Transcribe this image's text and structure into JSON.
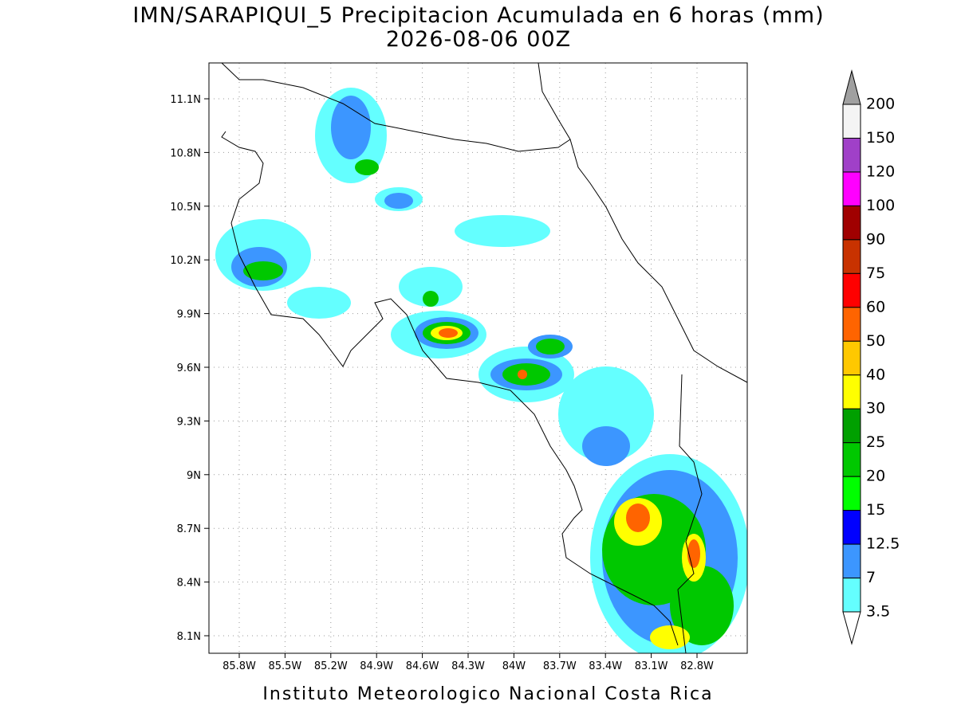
{
  "title": "IMN/SARAPIQUI_5 Precipitacion Acumulada en 6 horas (mm)",
  "subtitle": "2026-08-06 00Z",
  "footer": "Instituto Meteorologico Nacional Costa Rica",
  "map": {
    "lat_labels": [
      "11.1N",
      "10.8N",
      "10.5N",
      "10.2N",
      "9.9N",
      "9.6N",
      "9.3N",
      "9N",
      "8.7N",
      "8.4N",
      "8.1N"
    ],
    "lon_labels": [
      "85.8W",
      "85.5W",
      "85.2W",
      "84.9W",
      "84.6W",
      "84.3W",
      "84W",
      "83.7W",
      "83.4W",
      "83.1W",
      "82.8W"
    ]
  },
  "legend": {
    "labels": [
      200,
      150,
      120,
      100,
      90,
      75,
      60,
      50,
      40,
      30,
      25,
      20,
      15,
      12.5,
      7,
      3.5
    ],
    "colors": [
      "#f4f4f4",
      "#a040c8",
      "#ff00ff",
      "#a00000",
      "#c83200",
      "#ff0000",
      "#ff6400",
      "#ffc800",
      "#ffff00",
      "#00a000",
      "#00c800",
      "#00ff00",
      "#0000ff",
      "#3c96ff",
      "#64ffff"
    ],
    "over_color": "#a0a0a0",
    "under_color": "#ffffff"
  }
}
